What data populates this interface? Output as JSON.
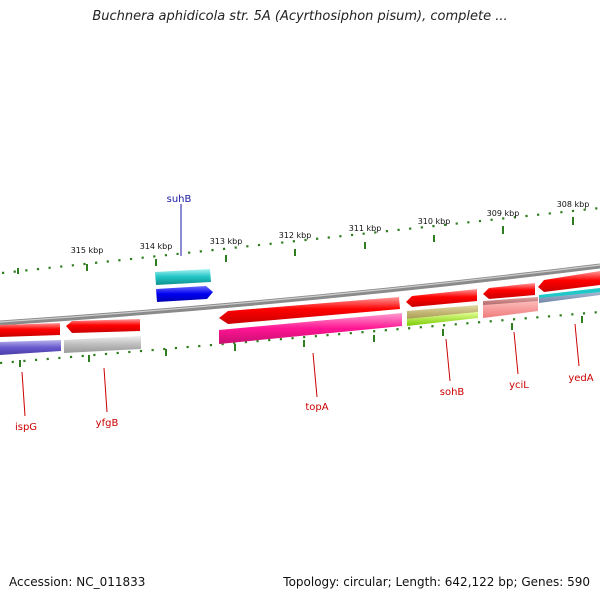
{
  "title": "Buchnera aphidicola str. 5A (Acyrthosiphon pisum), complete ...",
  "footer": {
    "accession": "Accession: NC_011833",
    "summary": "Topology: circular; Length: 642,122 bp; Genes: 590"
  },
  "ticks": [
    "315 kbp",
    "314 kbp",
    "313 kbp",
    "312 kbp",
    "311 kbp",
    "310 kbp",
    "309 kbp",
    "308 kbp"
  ],
  "genes": [
    "suhB",
    "ispG",
    "yfgB",
    "topA",
    "sohB",
    "yciL",
    "yedA"
  ],
  "colors": {
    "tick": "#2e7d1e",
    "backbone": "#8c8c8c",
    "cds_red": "#ee0000",
    "label_red": "#cc0000",
    "label_blue": "#1a1aa0"
  }
}
